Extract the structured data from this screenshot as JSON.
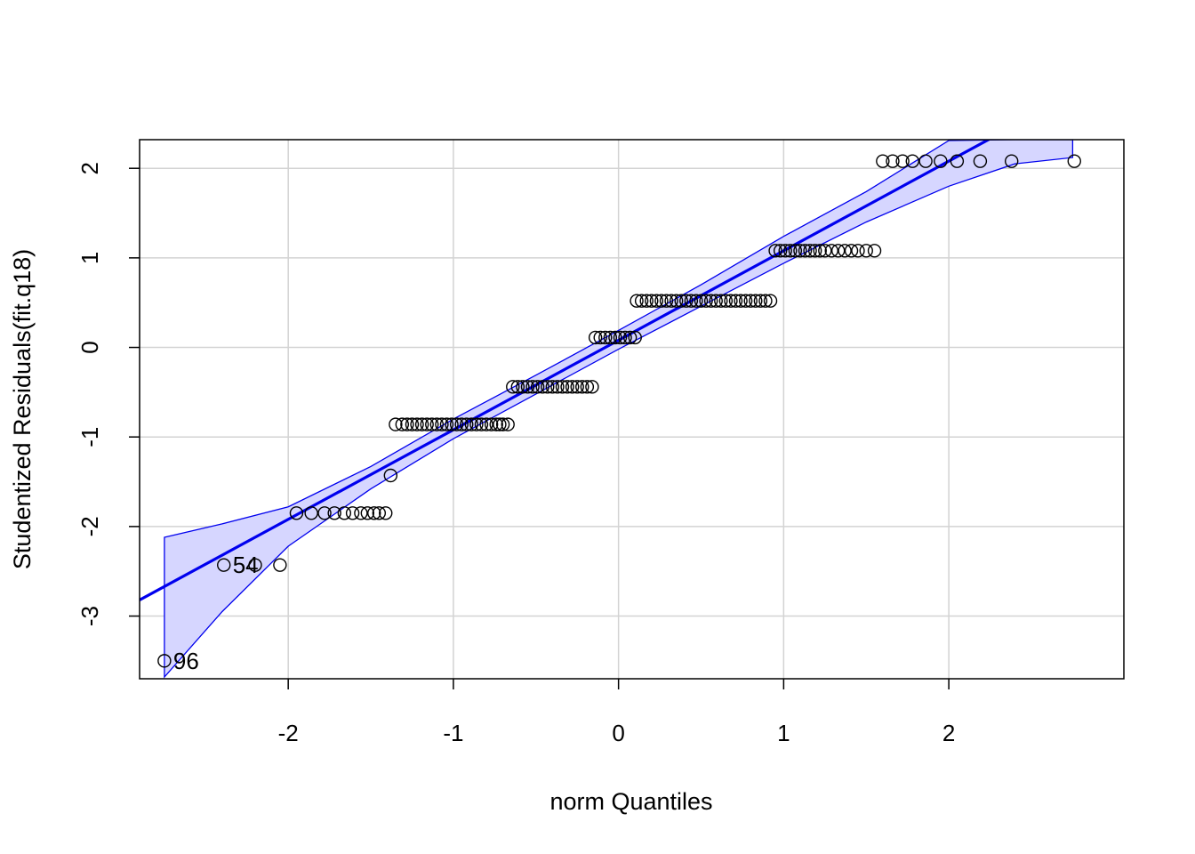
{
  "chart_data": {
    "type": "scatter",
    "title": "",
    "xlabel": "norm Quantiles",
    "ylabel": "Studentized Residuals(fit.q18)",
    "xlim": [
      -2.9,
      3.06
    ],
    "ylim": [
      -3.7,
      2.32
    ],
    "xticks": [
      -2,
      -1,
      0,
      1,
      2
    ],
    "yticks": [
      -3,
      -2,
      -1,
      0,
      1,
      2
    ],
    "grid": true,
    "colors": {
      "line": "#0000ee",
      "band_fill": "#d6d6ff",
      "band_edge": "#0000ee",
      "points": "#000000",
      "grid": "#d3d3d3"
    },
    "fit_line": {
      "intercept": 0.08,
      "slope": 1.0
    },
    "envelope": {
      "x": [
        -2.75,
        -2.4,
        -2.0,
        -1.5,
        -1.0,
        -0.5,
        0.0,
        0.5,
        1.0,
        1.5,
        2.0,
        2.4,
        2.75
      ],
      "lower": [
        -3.68,
        -2.95,
        -2.22,
        -1.58,
        -1.02,
        -0.52,
        -0.02,
        0.46,
        0.94,
        1.4,
        1.8,
        2.05,
        2.12
      ],
      "upper": [
        -2.12,
        -1.97,
        -1.78,
        -1.33,
        -0.8,
        -0.31,
        0.19,
        0.7,
        1.24,
        1.74,
        2.31,
        2.32,
        2.32
      ]
    },
    "point_groups": [
      {
        "y": -3.5,
        "x": [
          -2.75
        ]
      },
      {
        "y": -2.43,
        "x": [
          -2.39,
          -2.2,
          -2.05
        ]
      },
      {
        "y": -1.85,
        "x": [
          -1.95,
          -1.86,
          -1.78,
          -1.72,
          -1.66,
          -1.61,
          -1.56,
          -1.52,
          -1.48,
          -1.45,
          -1.41
        ]
      },
      {
        "y": -1.43,
        "x": [
          -1.38
        ]
      },
      {
        "y": -0.86,
        "x": [
          -1.35,
          -1.31,
          -1.28,
          -1.25,
          -1.22,
          -1.19,
          -1.16,
          -1.13,
          -1.1,
          -1.07,
          -1.04,
          -1.01,
          -0.98,
          -0.95,
          -0.92,
          -0.89,
          -0.86,
          -0.83,
          -0.8,
          -0.77,
          -0.74,
          -0.72,
          -0.7,
          -0.67
        ]
      },
      {
        "y": -0.44,
        "x": [
          -0.64,
          -0.61,
          -0.58,
          -0.55,
          -0.52,
          -0.49,
          -0.46,
          -0.43,
          -0.4,
          -0.37,
          -0.34,
          -0.31,
          -0.28,
          -0.25,
          -0.22,
          -0.19,
          -0.16
        ]
      },
      {
        "y": 0.11,
        "x": [
          -0.14,
          -0.11,
          -0.08,
          -0.05,
          -0.02,
          0.01,
          0.04,
          0.07,
          0.1
        ]
      },
      {
        "y": 0.52,
        "x": [
          0.11,
          0.14,
          0.17,
          0.2,
          0.23,
          0.26,
          0.29,
          0.32,
          0.35,
          0.38,
          0.41,
          0.44,
          0.47,
          0.5,
          0.53,
          0.56,
          0.59,
          0.62,
          0.65,
          0.68,
          0.71,
          0.74,
          0.77,
          0.8,
          0.83,
          0.86,
          0.89,
          0.92
        ]
      },
      {
        "y": 1.08,
        "x": [
          0.95,
          0.98,
          1.01,
          1.04,
          1.07,
          1.1,
          1.13,
          1.16,
          1.19,
          1.22,
          1.25,
          1.29,
          1.33,
          1.37,
          1.41,
          1.45,
          1.5,
          1.55
        ]
      },
      {
        "y": 2.08,
        "x": [
          1.6,
          1.66,
          1.72,
          1.78,
          1.86,
          1.95,
          2.05,
          2.19,
          2.38,
          2.76
        ]
      }
    ],
    "point_labels": [
      {
        "text": "54",
        "x": -2.39,
        "y": -2.43
      },
      {
        "text": "96",
        "x": -2.75,
        "y": -3.5
      }
    ]
  }
}
